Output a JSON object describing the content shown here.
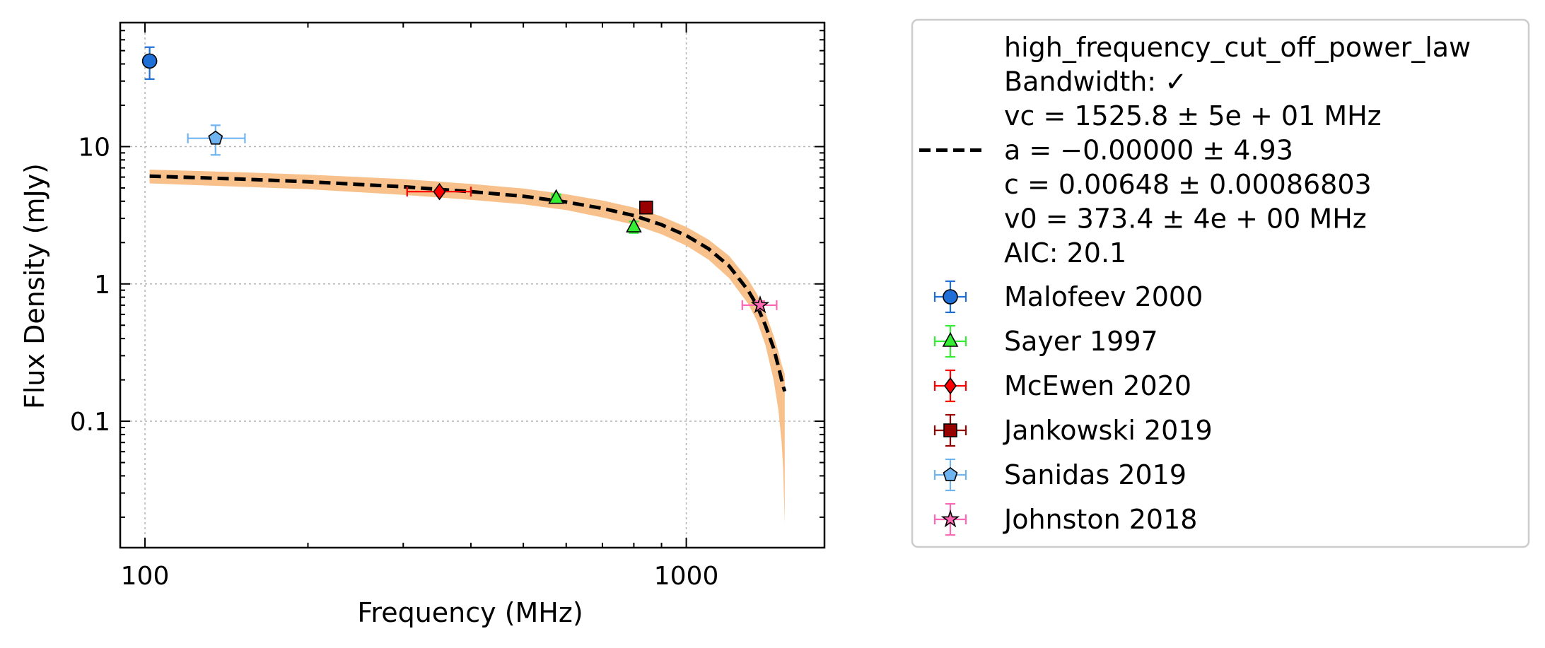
{
  "chart_data": {
    "type": "scatter",
    "xlabel": "Frequency (MHz)",
    "ylabel": "Flux Density (mJy)",
    "x_scale": "log",
    "y_scale": "log",
    "xlim": [
      90,
      1800
    ],
    "ylim": [
      0.012,
      80
    ],
    "grid": true,
    "legend_placement": "outside-right",
    "x_ticks": [
      {
        "value": 100,
        "label": "100"
      },
      {
        "value": 1000,
        "label": "1000"
      }
    ],
    "y_ticks": [
      {
        "value": 0.1,
        "label": "0.1"
      },
      {
        "value": 1,
        "label": "1"
      },
      {
        "value": 10,
        "label": "10"
      }
    ],
    "fit": {
      "model": "high_frequency_cut_off_power_law",
      "legend_lines": [
        "high_frequency_cut_off_power_law",
        "Bandwidth: ✓",
        "vc = 1525.8 ± 5e + 01 MHz",
        "a = −0.00000 ± 4.93",
        "c = 0.00648 ± 0.00086803",
        "v0 = 373.4 ± 4e + 00 MHz",
        "AIC: 20.1"
      ],
      "line_color": "#000000",
      "band_color": "#f8c08a",
      "x": [
        102,
        150,
        200,
        300,
        400,
        500,
        600,
        700,
        800,
        900,
        1000,
        1100,
        1200,
        1300,
        1350,
        1400,
        1450,
        1480,
        1500,
        1510,
        1520
      ],
      "y": [
        6.1,
        5.8,
        5.55,
        5.1,
        4.7,
        4.35,
        3.95,
        3.55,
        3.15,
        2.7,
        2.25,
        1.8,
        1.35,
        0.9,
        0.7,
        0.5,
        0.34,
        0.25,
        0.2,
        0.18,
        0.165
      ],
      "band_upper": [
        6.8,
        6.5,
        6.25,
        5.8,
        5.35,
        4.95,
        4.5,
        4.05,
        3.6,
        3.1,
        2.6,
        2.1,
        1.6,
        1.08,
        0.85,
        0.62,
        0.42,
        0.32,
        0.26,
        0.24,
        0.22
      ],
      "band_lower": [
        5.4,
        5.1,
        4.9,
        4.45,
        4.1,
        3.8,
        3.45,
        3.05,
        2.7,
        2.3,
        1.9,
        1.5,
        1.1,
        0.72,
        0.54,
        0.36,
        0.2,
        0.12,
        0.07,
        0.045,
        0.018
      ]
    },
    "series": [
      {
        "name": "Malofeev 2000",
        "marker": "circle",
        "color": "#1f6fd6",
        "points": [
          {
            "x": 102,
            "y": 42,
            "xerr": [
              0,
              0
            ],
            "yerr": [
              11,
              11
            ]
          }
        ]
      },
      {
        "name": "Sayer 1997",
        "marker": "triangle",
        "color": "#33ee33",
        "points": [
          {
            "x": 575,
            "y": 4.2,
            "xerr": [
              10,
              10
            ],
            "yerr": [
              0.3,
              0.3
            ]
          },
          {
            "x": 800,
            "y": 2.6,
            "xerr": [
              0,
              0
            ],
            "yerr": [
              0.25,
              0.25
            ]
          }
        ]
      },
      {
        "name": "McEwen 2020",
        "marker": "diamond",
        "color": "#ff0000",
        "points": [
          {
            "x": 350,
            "y": 4.7,
            "xerr": [
              45,
              50
            ],
            "yerr": [
              0.15,
              0.15
            ]
          }
        ]
      },
      {
        "name": "Jankowski 2019",
        "marker": "square",
        "color": "#990000",
        "points": [
          {
            "x": 843,
            "y": 3.6,
            "xerr": [
              0,
              0
            ],
            "yerr": [
              0.15,
              0.15
            ]
          }
        ]
      },
      {
        "name": "Sanidas 2019",
        "marker": "pentagon",
        "color": "#6fb3f0",
        "points": [
          {
            "x": 135,
            "y": 11.5,
            "xerr": [
              15,
              18
            ],
            "yerr": [
              2.8,
              2.8
            ]
          }
        ]
      },
      {
        "name": "Johnston 2018",
        "marker": "star",
        "color": "#ff69b4",
        "points": [
          {
            "x": 1369,
            "y": 0.7,
            "xerr": [
              100,
              100
            ],
            "yerr": [
              0.05,
              0.05
            ]
          }
        ]
      }
    ]
  }
}
